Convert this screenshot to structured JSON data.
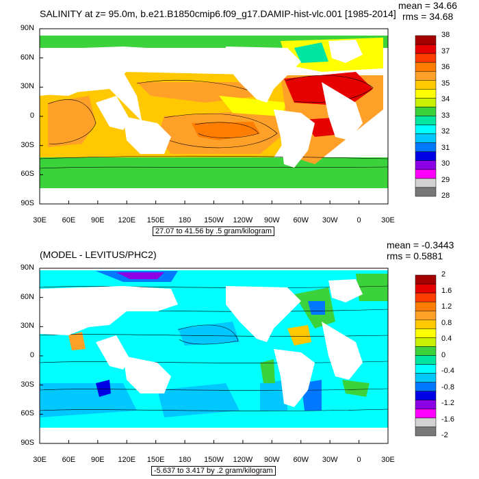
{
  "chart_data": [
    {
      "type": "heatmap",
      "title": "SALINITY at z=  95.0m, b.e21.B1850cmip6.f09_g17.DAMIP-hist-vlc.001 [1985-2014]",
      "stats": {
        "mean": "mean = 34.66",
        "rms": "rms = 34.68"
      },
      "lon_ticks": [
        "30E",
        "60E",
        "90E",
        "120E",
        "150E",
        "180",
        "150W",
        "120W",
        "90W",
        "60W",
        "30W",
        "0",
        "30E"
      ],
      "lat_ticks": [
        "90N",
        "60N",
        "30N",
        "0",
        "30S",
        "60S",
        "90S"
      ],
      "contour_info": "27.07 to 41.56 by .5 gram/kilogram",
      "colorbar": {
        "labels": [
          "38",
          "37",
          "36",
          "35",
          "34",
          "33",
          "32",
          "31",
          "30",
          "29",
          "28"
        ],
        "colors": [
          "#a50000",
          "#e60000",
          "#ff3c00",
          "#ff7d00",
          "#ffa028",
          "#ffc800",
          "#ffff00",
          "#c8f000",
          "#3cd23c",
          "#00e6a0",
          "#00ffff",
          "#00c8ff",
          "#0078ff",
          "#0000e6",
          "#8c00e6",
          "#ff00ff",
          "#d2d2d2",
          "#787878"
        ]
      }
    },
    {
      "type": "heatmap",
      "title": "(MODEL - LEVITUS/PHC2)",
      "stats": {
        "mean": "mean = -0.3443",
        "rms": "rms = 0.5881"
      },
      "lon_ticks": [
        "30E",
        "60E",
        "90E",
        "120E",
        "150E",
        "180",
        "150W",
        "120W",
        "90W",
        "60W",
        "30W",
        "0",
        "30E"
      ],
      "lat_ticks": [
        "90N",
        "60N",
        "30N",
        "0",
        "30S",
        "60S",
        "90S"
      ],
      "contour_info": "-5.637 to 3.417 by .2 gram/kilogram",
      "colorbar": {
        "labels": [
          "2",
          "1.6",
          "1.2",
          "0.8",
          "0.4",
          "0",
          "-0.4",
          "-0.8",
          "-1.2",
          "-1.6",
          "-2"
        ],
        "colors": [
          "#a50000",
          "#e60000",
          "#ff3c00",
          "#ff7d00",
          "#ffa028",
          "#ffc800",
          "#ffff00",
          "#c8f000",
          "#3cd23c",
          "#00e6a0",
          "#00ffff",
          "#00c8ff",
          "#0078ff",
          "#0000e6",
          "#8c00e6",
          "#ff00ff",
          "#d2d2d2",
          "#787878"
        ]
      }
    }
  ]
}
